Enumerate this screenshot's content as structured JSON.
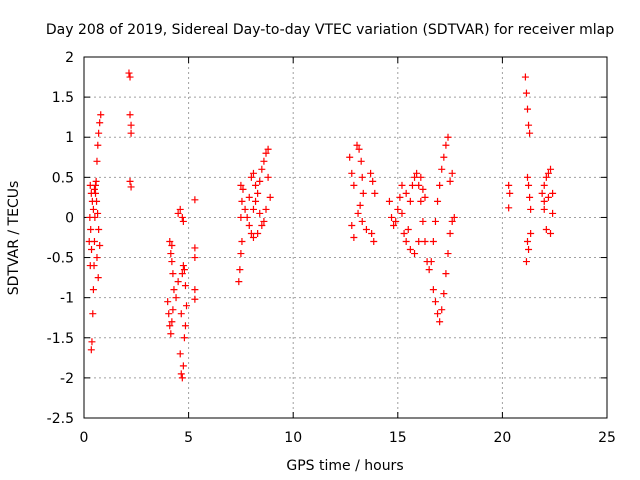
{
  "chart_data": {
    "type": "scatter",
    "title": "Day 208 of 2019, Sidereal Day-to-day VTEC variation (SDTVAR) for receiver mlap",
    "xlabel": "GPS time / hours",
    "ylabel": "SDTVAR / TECUs",
    "xlim": [
      0,
      25
    ],
    "ylim": [
      -2.5,
      2
    ],
    "xticks": [
      0,
      5,
      10,
      15,
      20,
      25
    ],
    "xtick_labels": [
      "0",
      "5",
      "10",
      "15",
      "20",
      "25"
    ],
    "yticks": [
      -2.5,
      -2,
      -1.5,
      -1,
      -0.5,
      0,
      0.5,
      1,
      1.5,
      2
    ],
    "ytick_labels": [
      "-2.5",
      "-2",
      "-1.5",
      "-1",
      "-0.5",
      "0",
      "0.5",
      "1",
      "1.5",
      "2"
    ],
    "grid": true,
    "marker": "+",
    "color": "#ff0000",
    "series": [
      {
        "name": "SDTVAR",
        "points": [
          [
            0.25,
            -0.3
          ],
          [
            0.3,
            -0.6
          ],
          [
            0.35,
            -1.65
          ],
          [
            0.38,
            -1.55
          ],
          [
            0.42,
            -1.2
          ],
          [
            0.45,
            -0.9
          ],
          [
            0.48,
            -0.6
          ],
          [
            0.5,
            -0.3
          ],
          [
            0.52,
            0.0
          ],
          [
            0.55,
            0.3
          ],
          [
            0.58,
            0.45
          ],
          [
            0.62,
            0.7
          ],
          [
            0.66,
            0.9
          ],
          [
            0.7,
            1.05
          ],
          [
            0.75,
            1.18
          ],
          [
            0.8,
            1.28
          ],
          [
            0.3,
            0.4
          ],
          [
            0.35,
            0.3
          ],
          [
            0.4,
            0.2
          ],
          [
            0.45,
            0.1
          ],
          [
            0.5,
            0.35
          ],
          [
            0.55,
            0.4
          ],
          [
            0.6,
            0.2
          ],
          [
            0.65,
            0.05
          ],
          [
            0.7,
            -0.15
          ],
          [
            0.75,
            -0.35
          ],
          [
            0.28,
            0.0
          ],
          [
            0.32,
            -0.15
          ],
          [
            0.36,
            -0.4
          ],
          [
            0.62,
            -0.5
          ],
          [
            0.68,
            -0.75
          ],
          [
            2.15,
            1.8
          ],
          [
            2.2,
            1.75
          ],
          [
            2.2,
            1.28
          ],
          [
            2.25,
            1.15
          ],
          [
            2.25,
            1.05
          ],
          [
            2.2,
            0.45
          ],
          [
            2.25,
            0.38
          ],
          [
            4.0,
            -1.05
          ],
          [
            4.05,
            -1.2
          ],
          [
            4.1,
            -1.35
          ],
          [
            4.15,
            -1.45
          ],
          [
            4.2,
            -1.3
          ],
          [
            4.25,
            -1.15
          ],
          [
            4.1,
            -0.3
          ],
          [
            4.15,
            -0.45
          ],
          [
            4.2,
            -0.55
          ],
          [
            4.2,
            -0.35
          ],
          [
            4.25,
            -0.7
          ],
          [
            4.3,
            -0.9
          ],
          [
            4.4,
            -1.0
          ],
          [
            4.5,
            -0.8
          ],
          [
            4.5,
            0.05
          ],
          [
            4.6,
            0.1
          ],
          [
            4.7,
            0.0
          ],
          [
            4.75,
            -0.05
          ],
          [
            4.6,
            -1.7
          ],
          [
            4.65,
            -1.95
          ],
          [
            4.7,
            -2.0
          ],
          [
            4.75,
            -1.85
          ],
          [
            4.8,
            -1.5
          ],
          [
            4.85,
            -1.35
          ],
          [
            4.7,
            -0.7
          ],
          [
            4.75,
            -0.6
          ],
          [
            4.8,
            -0.65
          ],
          [
            4.85,
            -0.85
          ],
          [
            4.9,
            -1.1
          ],
          [
            4.65,
            -1.2
          ],
          [
            5.3,
            0.22
          ],
          [
            5.3,
            -0.38
          ],
          [
            5.3,
            -0.5
          ],
          [
            5.3,
            -0.9
          ],
          [
            5.3,
            -1.02
          ],
          [
            7.4,
            -0.8
          ],
          [
            7.45,
            -0.65
          ],
          [
            7.5,
            -0.45
          ],
          [
            7.55,
            -0.3
          ],
          [
            7.5,
            0.0
          ],
          [
            7.55,
            0.2
          ],
          [
            7.5,
            0.4
          ],
          [
            7.6,
            0.35
          ],
          [
            7.7,
            0.1
          ],
          [
            7.8,
            0.0
          ],
          [
            7.9,
            0.25
          ],
          [
            8.0,
            0.5
          ],
          [
            8.1,
            0.55
          ],
          [
            8.2,
            0.4
          ],
          [
            8.3,
            0.3
          ],
          [
            8.4,
            0.45
          ],
          [
            8.5,
            0.6
          ],
          [
            8.6,
            0.7
          ],
          [
            8.7,
            0.8
          ],
          [
            8.8,
            0.85
          ],
          [
            7.9,
            -0.1
          ],
          [
            8.0,
            -0.2
          ],
          [
            8.1,
            -0.25
          ],
          [
            8.3,
            -0.2
          ],
          [
            8.5,
            -0.1
          ],
          [
            8.7,
            0.1
          ],
          [
            8.9,
            0.25
          ],
          [
            8.1,
            0.1
          ],
          [
            8.2,
            0.2
          ],
          [
            8.4,
            0.05
          ],
          [
            8.6,
            -0.05
          ],
          [
            8.8,
            0.5
          ],
          [
            12.7,
            0.75
          ],
          [
            12.8,
            0.55
          ],
          [
            12.9,
            0.4
          ],
          [
            12.8,
            -0.1
          ],
          [
            12.9,
            -0.25
          ],
          [
            13.05,
            0.9
          ],
          [
            13.15,
            0.85
          ],
          [
            13.25,
            0.7
          ],
          [
            13.3,
            0.5
          ],
          [
            13.35,
            0.3
          ],
          [
            13.2,
            0.15
          ],
          [
            13.1,
            0.05
          ],
          [
            13.3,
            -0.05
          ],
          [
            13.5,
            -0.15
          ],
          [
            13.7,
            0.55
          ],
          [
            13.8,
            0.45
          ],
          [
            13.9,
            0.3
          ],
          [
            13.75,
            -0.2
          ],
          [
            13.85,
            -0.3
          ],
          [
            14.6,
            0.2
          ],
          [
            14.7,
            0.0
          ],
          [
            14.8,
            -0.1
          ],
          [
            14.9,
            -0.05
          ],
          [
            15.0,
            0.1
          ],
          [
            15.1,
            0.25
          ],
          [
            15.2,
            0.05
          ],
          [
            15.3,
            -0.2
          ],
          [
            15.4,
            -0.3
          ],
          [
            15.5,
            -0.15
          ],
          [
            15.6,
            0.2
          ],
          [
            15.7,
            0.4
          ],
          [
            15.8,
            0.5
          ],
          [
            15.9,
            0.55
          ],
          [
            16.0,
            0.4
          ],
          [
            16.1,
            0.2
          ],
          [
            16.2,
            -0.05
          ],
          [
            16.3,
            -0.3
          ],
          [
            16.4,
            -0.55
          ],
          [
            16.5,
            -0.65
          ],
          [
            16.6,
            -0.55
          ],
          [
            16.7,
            -0.3
          ],
          [
            16.8,
            -0.05
          ],
          [
            16.9,
            0.2
          ],
          [
            17.0,
            0.4
          ],
          [
            17.1,
            0.6
          ],
          [
            17.2,
            0.75
          ],
          [
            17.3,
            0.9
          ],
          [
            17.4,
            1.0
          ],
          [
            16.7,
            -0.9
          ],
          [
            16.8,
            -1.05
          ],
          [
            16.9,
            -1.2
          ],
          [
            17.0,
            -1.3
          ],
          [
            17.1,
            -1.15
          ],
          [
            17.2,
            -0.95
          ],
          [
            17.3,
            -0.7
          ],
          [
            17.4,
            -0.45
          ],
          [
            17.5,
            -0.2
          ],
          [
            17.6,
            -0.05
          ],
          [
            16.1,
            0.5
          ],
          [
            16.2,
            0.35
          ],
          [
            16.3,
            0.25
          ],
          [
            15.4,
            0.3
          ],
          [
            15.2,
            0.4
          ],
          [
            15.6,
            -0.4
          ],
          [
            15.8,
            -0.45
          ],
          [
            16.0,
            -0.3
          ],
          [
            17.5,
            0.45
          ],
          [
            17.6,
            0.55
          ],
          [
            17.7,
            0.0
          ],
          [
            20.3,
            0.4
          ],
          [
            20.35,
            0.3
          ],
          [
            20.3,
            0.12
          ],
          [
            21.1,
            1.75
          ],
          [
            21.15,
            1.55
          ],
          [
            21.2,
            1.35
          ],
          [
            21.25,
            1.15
          ],
          [
            21.3,
            1.05
          ],
          [
            21.2,
            0.5
          ],
          [
            21.25,
            0.4
          ],
          [
            21.3,
            0.25
          ],
          [
            21.35,
            0.1
          ],
          [
            21.2,
            -0.3
          ],
          [
            21.25,
            -0.4
          ],
          [
            21.15,
            -0.55
          ],
          [
            21.35,
            -0.2
          ],
          [
            21.9,
            0.3
          ],
          [
            22.0,
            0.4
          ],
          [
            22.1,
            0.5
          ],
          [
            22.2,
            0.55
          ],
          [
            22.3,
            0.6
          ],
          [
            22.0,
            0.2
          ],
          [
            22.2,
            0.25
          ],
          [
            22.4,
            0.3
          ],
          [
            22.1,
            -0.15
          ],
          [
            22.3,
            -0.2
          ],
          [
            22.4,
            0.05
          ],
          [
            22.0,
            0.1
          ]
        ]
      }
    ]
  }
}
